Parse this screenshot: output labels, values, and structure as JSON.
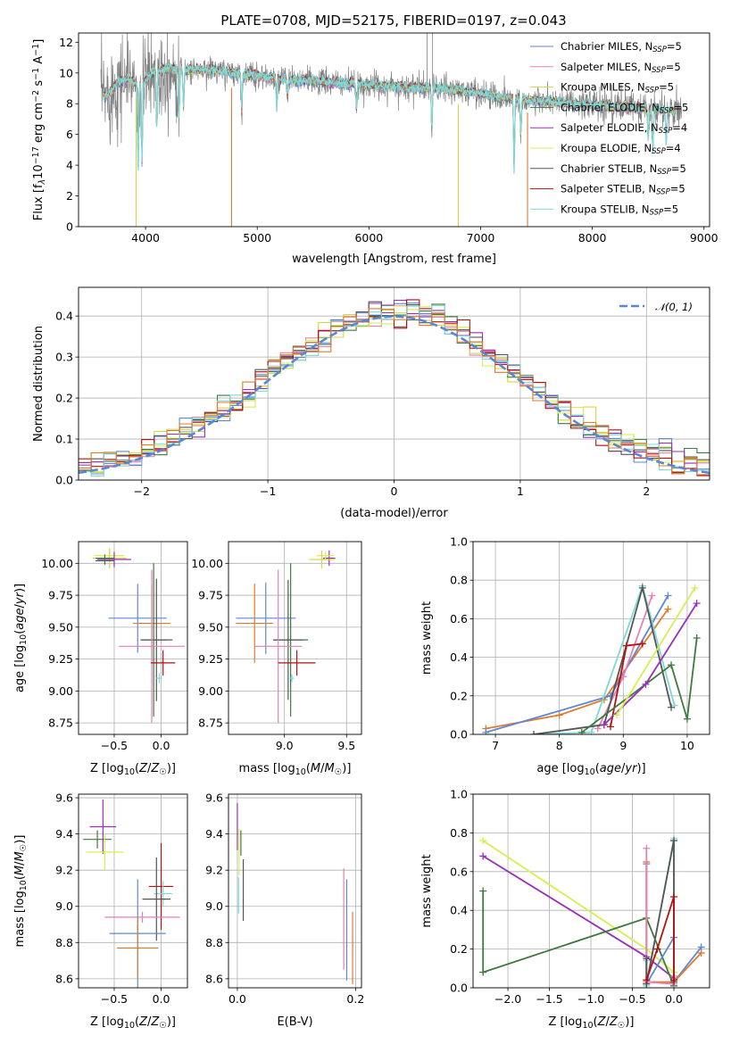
{
  "figure_title": "PLATE=0708, MJD=52175, FIBERID=0197, z=0.043",
  "colors": {
    "Chabrier MILES": "#5f87d6",
    "Salpeter MILES": "#e77fb3",
    "Kroupa MILES": "#d5d54a",
    "Chabrier ELODIE": "#3d7a3d",
    "Salpeter ELODIE": "#9a2fb5",
    "Kroupa ELODIE": "#d6ef4f",
    "Chabrier STELIB": "#555555",
    "Salpeter STELIB": "#b80f0f",
    "Kroupa STELIB": "#7fd8d8",
    "orange": "#e07b2c",
    "gray_spec": "#808080",
    "normal_curve": "#5b86d8"
  },
  "chart_data": [
    {
      "id": "spectrum",
      "type": "line",
      "title": "PLATE=0708, MJD=52175, FIBERID=0197, z=0.043",
      "xlabel": "wavelength [Angstrom, rest frame]",
      "ylabel": "Flux [f_λ 10^-17 erg cm^-2 s^-1 A^-1]",
      "xlim": [
        3400,
        9050
      ],
      "ylim": [
        0,
        12.6
      ],
      "xticks": [
        4000,
        5000,
        6000,
        7000,
        8000,
        9000
      ],
      "yticks": [
        0,
        2,
        4,
        6,
        8,
        10,
        12
      ],
      "data_range_x": [
        3600,
        8800
      ],
      "continuum": [
        {
          "x": 3650,
          "y": 8.5
        },
        {
          "x": 3750,
          "y": 9.4
        },
        {
          "x": 3850,
          "y": 9.6
        },
        {
          "x": 3950,
          "y": 9.2
        },
        {
          "x": 4050,
          "y": 10.0
        },
        {
          "x": 4200,
          "y": 10.3
        },
        {
          "x": 4400,
          "y": 10.2
        },
        {
          "x": 4600,
          "y": 10.2
        },
        {
          "x": 4800,
          "y": 10.0
        },
        {
          "x": 5000,
          "y": 9.8
        },
        {
          "x": 5200,
          "y": 9.6
        },
        {
          "x": 5400,
          "y": 9.5
        },
        {
          "x": 5600,
          "y": 9.4
        },
        {
          "x": 5800,
          "y": 9.3
        },
        {
          "x": 6000,
          "y": 9.2
        },
        {
          "x": 6300,
          "y": 9.1
        },
        {
          "x": 6600,
          "y": 9.0
        },
        {
          "x": 6900,
          "y": 8.8
        },
        {
          "x": 7200,
          "y": 8.4
        },
        {
          "x": 7500,
          "y": 8.2
        },
        {
          "x": 7800,
          "y": 8.0
        },
        {
          "x": 8100,
          "y": 7.9
        },
        {
          "x": 8400,
          "y": 7.7
        },
        {
          "x": 8600,
          "y": 7.6
        },
        {
          "x": 8800,
          "y": 7.5
        }
      ],
      "absorption_dips": [
        {
          "x": 3934,
          "depth": 0.6
        },
        {
          "x": 3969,
          "depth": 0.55
        },
        {
          "x": 4102,
          "depth": 0.35
        },
        {
          "x": 4300,
          "depth": 0.3
        },
        {
          "x": 4340,
          "depth": 0.25
        },
        {
          "x": 4861,
          "depth": 0.25
        },
        {
          "x": 5175,
          "depth": 0.2
        },
        {
          "x": 5270,
          "depth": 0.12
        },
        {
          "x": 5890,
          "depth": 0.18
        },
        {
          "x": 6563,
          "depth": 0.3
        },
        {
          "x": 7300,
          "depth": 0.55
        },
        {
          "x": 7360,
          "depth": 0.3
        },
        {
          "x": 8500,
          "depth": 0.25
        },
        {
          "x": 8542,
          "depth": 0.35
        },
        {
          "x": 8662,
          "depth": 0.3
        }
      ],
      "spikes_to_zero": [
        {
          "x": 3915,
          "color_key": "Kroupa MILES"
        },
        {
          "x": 4770,
          "color_key": "orange"
        },
        {
          "x": 6800,
          "color_key": "Kroupa MILES"
        },
        {
          "x": 7420,
          "color_key": "orange"
        }
      ],
      "spikes_up": [
        {
          "x": 6520,
          "y": 12.6
        },
        {
          "x": 6570,
          "y": 12.6
        }
      ],
      "legend_location": "right",
      "legend": [
        {
          "name": "Chabrier MILES, N",
          "sub": "SSP",
          "suffix": "=5",
          "color_key": "Chabrier MILES"
        },
        {
          "name": "Salpeter MILES, N",
          "sub": "SSP",
          "suffix": "=5",
          "color_key": "Salpeter MILES"
        },
        {
          "name": "Kroupa MILES, N",
          "sub": "SSP",
          "suffix": "=5",
          "color_key": "Kroupa MILES"
        },
        {
          "name": "Chabrier ELODIE, N",
          "sub": "SSP",
          "suffix": "=5",
          "color_key": "Chabrier ELODIE"
        },
        {
          "name": "Salpeter ELODIE, N",
          "sub": "SSP",
          "suffix": "=4",
          "color_key": "Salpeter ELODIE"
        },
        {
          "name": "Kroupa ELODIE, N",
          "sub": "SSP",
          "suffix": "=4",
          "color_key": "Kroupa ELODIE"
        },
        {
          "name": "Chabrier STELIB, N",
          "sub": "SSP",
          "suffix": "=5",
          "color_key": "Chabrier STELIB"
        },
        {
          "name": "Salpeter STELIB, N",
          "sub": "SSP",
          "suffix": "=5",
          "color_key": "Salpeter STELIB"
        },
        {
          "name": "Kroupa STELIB, N",
          "sub": "SSP",
          "suffix": "=5",
          "color_key": "Kroupa STELIB"
        }
      ]
    },
    {
      "id": "residual_hist",
      "type": "area",
      "xlabel": "(data-model)/error",
      "ylabel": "Normed distribution",
      "xlim": [
        -2.5,
        2.5
      ],
      "ylim": [
        0,
        0.47
      ],
      "xticks": [
        -2,
        -1,
        0,
        1,
        2
      ],
      "yticks": [
        0.0,
        0.1,
        0.2,
        0.3,
        0.4
      ],
      "grid": true,
      "bin_width": 0.1,
      "legend": [
        {
          "name": "𝒩(0, 1)",
          "style": "dashed",
          "color_key": "normal_curve"
        }
      ],
      "legend_location": "top-right"
    },
    {
      "id": "age_vs_Z",
      "type": "scatter",
      "xlabel": "Z [log10(Z/Z☉)]",
      "ylabel": "age [log10(age/yr)]",
      "xlim": [
        -0.88,
        0.28
      ],
      "ylim": [
        8.66,
        10.17
      ],
      "xticks": [
        -0.5,
        0.0
      ],
      "yticks": [
        8.75,
        9.0,
        9.25,
        9.5,
        9.75,
        10.0,
        10.25
      ],
      "ytick_labels": [
        "8.75",
        "9.00",
        "9.25",
        "9.50",
        "9.75",
        "10.00",
        ""
      ],
      "grid": true,
      "points": [
        {
          "x": -0.55,
          "y": 10.06,
          "xerr": 0.16,
          "yerr": 0.05,
          "color_key": "Kroupa ELODIE"
        },
        {
          "x": -0.55,
          "y": 10.04,
          "xerr": 0.18,
          "yerr": 0.08,
          "color_key": "Kroupa MILES"
        },
        {
          "x": -0.5,
          "y": 10.03,
          "xerr": 0.18,
          "yerr": 0.06,
          "color_key": "Salpeter ELODIE"
        },
        {
          "x": -0.6,
          "y": 10.02,
          "xerr": 0.1,
          "yerr": 0.03,
          "color_key": "Chabrier STELIB"
        },
        {
          "x": -0.6,
          "y": 10.04,
          "xerr": 0.1,
          "yerr": 0.03,
          "color_key": "Chabrier ELODIE"
        },
        {
          "x": -0.25,
          "y": 9.57,
          "xerr": 0.31,
          "yerr": 0.27,
          "color_key": "Chabrier MILES"
        },
        {
          "x": -0.1,
          "y": 9.53,
          "xerr": 0.2,
          "yerr": 0.3,
          "color_key": "orange"
        },
        {
          "x": -0.08,
          "y": 9.4,
          "xerr": 0.13,
          "yerr": 0.6,
          "color_key": "Chabrier ELODIE"
        },
        {
          "x": -0.05,
          "y": 9.4,
          "xerr": 0.17,
          "yerr": 0.48,
          "color_key": "Chabrier STELIB"
        },
        {
          "x": -0.1,
          "y": 9.35,
          "xerr": 0.35,
          "yerr": 0.6,
          "color_key": "Salpeter MILES"
        },
        {
          "x": 0.02,
          "y": 9.22,
          "xerr": 0.13,
          "yerr": 0.1,
          "color_key": "Salpeter STELIB"
        },
        {
          "x": -0.02,
          "y": 9.1,
          "xerr": 0.03,
          "yerr": 0.04,
          "color_key": "Kroupa STELIB"
        }
      ]
    },
    {
      "id": "age_vs_mass",
      "type": "scatter",
      "xlabel": "mass [log10(M/M☉)]",
      "ylabel": "",
      "xlim": [
        8.55,
        9.62
      ],
      "ylim": [
        8.66,
        10.17
      ],
      "xticks": [
        9.0,
        9.5
      ],
      "yticks": [
        8.75,
        9.0,
        9.25,
        9.5,
        9.75,
        10.0,
        10.25
      ],
      "ytick_labels": [
        "8.75",
        "9.00",
        "9.25",
        "9.50",
        "9.75",
        "10.00",
        ""
      ],
      "grid": true,
      "points": [
        {
          "x": 9.36,
          "y": 10.04,
          "xerr": 0.05,
          "yerr": 0.06,
          "color_key": "Salpeter ELODIE"
        },
        {
          "x": 9.33,
          "y": 10.06,
          "xerr": 0.07,
          "yerr": 0.03,
          "color_key": "Kroupa ELODIE"
        },
        {
          "x": 9.3,
          "y": 10.03,
          "xerr": 0.1,
          "yerr": 0.07,
          "color_key": "Kroupa MILES"
        },
        {
          "x": 8.85,
          "y": 9.57,
          "xerr": 0.24,
          "yerr": 0.28,
          "color_key": "Chabrier MILES"
        },
        {
          "x": 8.76,
          "y": 9.53,
          "xerr": 0.15,
          "yerr": 0.31,
          "color_key": "orange"
        },
        {
          "x": 9.05,
          "y": 9.4,
          "xerr": 0.14,
          "yerr": 0.6,
          "color_key": "Chabrier ELODIE"
        },
        {
          "x": 9.03,
          "y": 9.4,
          "xerr": 0.12,
          "yerr": 0.47,
          "color_key": "Chabrier STELIB"
        },
        {
          "x": 8.95,
          "y": 9.35,
          "xerr": 0.19,
          "yerr": 0.6,
          "color_key": "Salpeter MILES"
        },
        {
          "x": 9.1,
          "y": 9.22,
          "xerr": 0.15,
          "yerr": 0.1,
          "color_key": "Salpeter STELIB"
        },
        {
          "x": 9.06,
          "y": 9.1,
          "xerr": 0.02,
          "yerr": 0.03,
          "color_key": "Kroupa STELIB"
        }
      ]
    },
    {
      "id": "weight_vs_age",
      "type": "line",
      "xlabel": "age [log10(age/yr)]",
      "ylabel": "mass weight",
      "xlim": [
        6.65,
        10.35
      ],
      "ylim": [
        0,
        1.0
      ],
      "xticks": [
        7,
        8,
        9,
        10
      ],
      "yticks": [
        0.0,
        0.2,
        0.4,
        0.6,
        0.8,
        1.0
      ],
      "grid": true,
      "series": [
        {
          "color_key": "orange",
          "x": [
            6.85,
            8.0,
            8.7,
            9.7
          ],
          "y": [
            0.03,
            0.1,
            0.18,
            0.65
          ]
        },
        {
          "color_key": "Chabrier MILES",
          "x": [
            6.85,
            8.8,
            9.7
          ],
          "y": [
            0.01,
            0.2,
            0.72
          ]
        },
        {
          "color_key": "Salpeter MILES",
          "x": [
            8.6,
            9.0,
            9.45
          ],
          "y": [
            0.03,
            0.3,
            0.72
          ]
        },
        {
          "color_key": "Kroupa STELIB",
          "x": [
            7.6,
            8.5,
            9.3,
            9.8
          ],
          "y": [
            0.0,
            0.01,
            0.77,
            0.15
          ]
        },
        {
          "color_key": "Chabrier STELIB",
          "x": [
            7.6,
            8.7,
            9.3,
            9.75
          ],
          "y": [
            0.0,
            0.05,
            0.76,
            0.14
          ]
        },
        {
          "color_key": "Salpeter STELIB",
          "x": [
            8.8,
            9.05,
            9.3
          ],
          "y": [
            0.04,
            0.46,
            0.47
          ]
        },
        {
          "color_key": "Chabrier ELODIE",
          "x": [
            8.35,
            9.75,
            10.0,
            10.15
          ],
          "y": [
            0.01,
            0.36,
            0.08,
            0.5
          ]
        },
        {
          "color_key": "Salpeter ELODIE",
          "x": [
            8.7,
            9.35,
            10.15
          ],
          "y": [
            0.05,
            0.26,
            0.68
          ]
        },
        {
          "color_key": "Kroupa ELODIE",
          "x": [
            8.9,
            10.12
          ],
          "y": [
            0.1,
            0.76
          ]
        }
      ]
    },
    {
      "id": "mass_vs_Z",
      "type": "scatter",
      "xlabel": "Z [log10(Z/Z☉)]",
      "ylabel": "mass [log10(M/M☉)]",
      "xlim": [
        -0.88,
        0.28
      ],
      "ylim": [
        8.55,
        9.62
      ],
      "xticks": [
        -0.5,
        0.0
      ],
      "yticks": [
        8.6,
        8.8,
        9.0,
        9.2,
        9.4,
        9.6
      ],
      "grid": true,
      "points": [
        {
          "x": -0.62,
          "y": 9.44,
          "xerr": 0.14,
          "yerr": 0.15,
          "color_key": "Salpeter ELODIE"
        },
        {
          "x": -0.68,
          "y": 9.37,
          "xerr": 0.15,
          "yerr": 0.05,
          "color_key": "Chabrier ELODIE"
        },
        {
          "x": -0.6,
          "y": 9.3,
          "xerr": 0.2,
          "yerr": 0.1,
          "color_key": "Kroupa ELODIE"
        },
        {
          "x": 0.0,
          "y": 9.11,
          "xerr": 0.13,
          "yerr": 0.24,
          "color_key": "Salpeter STELIB"
        },
        {
          "x": 0.02,
          "y": 9.07,
          "xerr": 0.1,
          "yerr": 0.07,
          "color_key": "Kroupa STELIB"
        },
        {
          "x": -0.05,
          "y": 9.04,
          "xerr": 0.15,
          "yerr": 0.23,
          "color_key": "Chabrier STELIB"
        },
        {
          "x": -0.2,
          "y": 8.94,
          "xerr": 0.4,
          "yerr": 0.03,
          "color_key": "Salpeter MILES"
        },
        {
          "x": -0.25,
          "y": 8.85,
          "xerr": 0.3,
          "yerr": 0.3,
          "color_key": "Chabrier MILES"
        },
        {
          "x": -0.25,
          "y": 8.77,
          "xerr": 0.22,
          "yerr": 0.17,
          "color_key": "orange"
        }
      ]
    },
    {
      "id": "mass_vs_EBV",
      "type": "scatter",
      "xlabel": "E(B-V)",
      "ylabel": "",
      "xlim": [
        -0.015,
        0.21
      ],
      "ylim": [
        8.55,
        9.62
      ],
      "xticks": [
        0.0,
        0.2
      ],
      "yticks": [
        8.6,
        8.8,
        9.0,
        9.2,
        9.4,
        9.6
      ],
      "grid": true,
      "points": [
        {
          "x": 0.0,
          "y": 9.44,
          "xerr": 0.0,
          "yerr": 0.13,
          "color_key": "Salpeter ELODIE"
        },
        {
          "x": 0.003,
          "y": 9.3,
          "xerr": 0.0,
          "yerr": 0.13,
          "color_key": "Kroupa ELODIE"
        },
        {
          "x": 0.006,
          "y": 9.35,
          "xerr": 0.0,
          "yerr": 0.07,
          "color_key": "Chabrier ELODIE"
        },
        {
          "x": 0.01,
          "y": 9.09,
          "xerr": 0.0,
          "yerr": 0.17,
          "color_key": "Chabrier STELIB"
        },
        {
          "x": 0.002,
          "y": 9.06,
          "xerr": 0.0,
          "yerr": 0.1,
          "color_key": "Kroupa STELIB"
        },
        {
          "x": 0.18,
          "y": 8.93,
          "xerr": 0.0,
          "yerr": 0.28,
          "color_key": "Salpeter MILES"
        },
        {
          "x": 0.185,
          "y": 8.87,
          "xerr": 0.0,
          "yerr": 0.28,
          "color_key": "Chabrier MILES"
        },
        {
          "x": 0.195,
          "y": 8.77,
          "xerr": 0.0,
          "yerr": 0.2,
          "color_key": "orange"
        }
      ]
    },
    {
      "id": "weight_vs_Z",
      "type": "line",
      "xlabel": "Z [log10(Z/Z☉)]",
      "ylabel": "mass weight",
      "xlim": [
        -2.42,
        0.43
      ],
      "ylim": [
        0,
        1.0
      ],
      "xticks": [
        -2.0,
        -1.5,
        -1.0,
        -0.5,
        0.0
      ],
      "yticks": [
        0.0,
        0.2,
        0.4,
        0.6,
        0.8,
        1.0
      ],
      "grid": true,
      "series": [
        {
          "color_key": "Kroupa ELODIE",
          "x": [
            -2.3,
            -0.33,
            0.0
          ],
          "y": [
            0.76,
            0.2,
            0.08
          ]
        },
        {
          "color_key": "Salpeter ELODIE",
          "x": [
            -2.3,
            -0.33,
            0.0
          ],
          "y": [
            0.68,
            0.16,
            0.05
          ]
        },
        {
          "color_key": "Chabrier ELODIE",
          "x": [
            -2.3,
            -2.3,
            -0.33,
            0.0
          ],
          "y": [
            0.5,
            0.08,
            0.36,
            0.01
          ]
        },
        {
          "color_key": "Chabrier MILES",
          "x": [
            -0.33,
            -0.33,
            0.0,
            0.0,
            0.33
          ],
          "y": [
            0.64,
            0.02,
            0.26,
            0.03,
            0.21
          ]
        },
        {
          "color_key": "orange",
          "x": [
            -0.33,
            -0.33,
            0.0,
            0.33
          ],
          "y": [
            0.65,
            0.03,
            0.03,
            0.18
          ]
        },
        {
          "color_key": "Salpeter MILES",
          "x": [
            -0.33,
            -0.33,
            0.0,
            0.0
          ],
          "y": [
            0.72,
            0.03,
            0.02,
            0.06
          ]
        },
        {
          "color_key": "Kroupa STELIB",
          "x": [
            -0.33,
            -0.33,
            0.0,
            0.0
          ],
          "y": [
            0.14,
            0.01,
            0.77,
            0.04
          ]
        },
        {
          "color_key": "Chabrier STELIB",
          "x": [
            -0.33,
            -0.33,
            0.0,
            0.0
          ],
          "y": [
            0.15,
            0.02,
            0.76,
            0.03
          ]
        },
        {
          "color_key": "Salpeter STELIB",
          "x": [
            -0.33,
            -0.2,
            0.0,
            0.0
          ],
          "y": [
            0.04,
            0.2,
            0.47,
            0.04
          ]
        }
      ]
    }
  ]
}
